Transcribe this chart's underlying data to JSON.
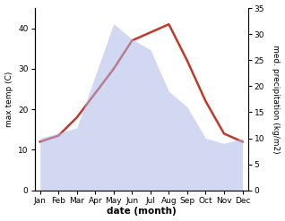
{
  "months": [
    "Jan",
    "Feb",
    "Mar",
    "Apr",
    "May",
    "Jun",
    "Jul",
    "Aug",
    "Sep",
    "Oct",
    "Nov",
    "Dec"
  ],
  "temperature": [
    12,
    13.5,
    18,
    24,
    30,
    37,
    39,
    41,
    32,
    22,
    14,
    12
  ],
  "precipitation": [
    10,
    11,
    12,
    22,
    32,
    29,
    27,
    19,
    16,
    10,
    9,
    10
  ],
  "temp_color": "#c0392b",
  "precip_color": "#b0b8e8",
  "temp_ylim": [
    0,
    45
  ],
  "precip_ylim": [
    0,
    35
  ],
  "temp_yticks": [
    0,
    10,
    20,
    30,
    40
  ],
  "precip_yticks": [
    0,
    5,
    10,
    15,
    20,
    25,
    30,
    35
  ],
  "ylabel_left": "max temp (C)",
  "ylabel_right": "med. precipitation (kg/m2)",
  "xlabel": "date (month)",
  "background_color": "#ffffff",
  "line_width": 1.8,
  "precip_alpha": 0.55,
  "figwidth": 3.18,
  "figheight": 2.47,
  "dpi": 100
}
